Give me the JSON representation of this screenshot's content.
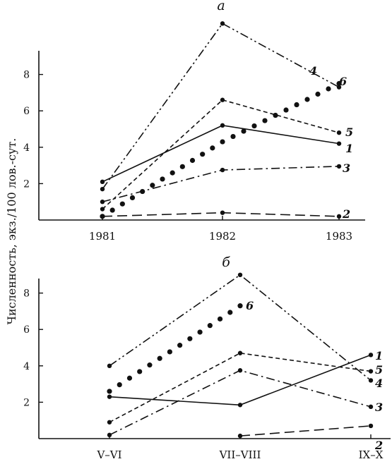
{
  "ylabel": "Численность, экз./100 лов.-сут.",
  "chart_data": [
    {
      "type": "line",
      "panel_label": "а",
      "x": [
        "1981",
        "1982",
        "1983"
      ],
      "ylim": [
        0,
        9.2
      ],
      "yticks": [
        2,
        4,
        6,
        8
      ],
      "series": [
        {
          "name": "1",
          "style": "solid",
          "values": [
            2.1,
            5.2,
            4.2
          ]
        },
        {
          "name": "2",
          "style": "longdash",
          "values": [
            0.2,
            0.4,
            0.2
          ]
        },
        {
          "name": "3",
          "style": "dashdot",
          "values": [
            1.0,
            2.75,
            2.95
          ]
        },
        {
          "name": "4",
          "style": "dashdotdot",
          "values": [
            1.7,
            10.8,
            7.3
          ]
        },
        {
          "name": "5",
          "style": "shortdash",
          "values": [
            0.6,
            6.6,
            4.8
          ]
        },
        {
          "name": "6",
          "style": "dots",
          "values": [
            0.2,
            4.3,
            7.5
          ]
        }
      ]
    },
    {
      "type": "line",
      "panel_label": "б",
      "x": [
        "V–VI",
        "VII–VIII",
        "IX–X"
      ],
      "ylim": [
        0,
        9.2
      ],
      "yticks": [
        2,
        4,
        6,
        8
      ],
      "series": [
        {
          "name": "1",
          "style": "solid",
          "values": [
            2.3,
            1.85,
            4.6
          ]
        },
        {
          "name": "2",
          "style": "longdash",
          "values": [
            null,
            0.15,
            0.7
          ]
        },
        {
          "name": "3",
          "style": "dashdot",
          "values": [
            0.2,
            3.75,
            1.75
          ]
        },
        {
          "name": "4",
          "style": "dashdotdot",
          "values": [
            4.0,
            9.0,
            3.2
          ]
        },
        {
          "name": "5",
          "style": "shortdash",
          "values": [
            0.9,
            4.7,
            3.7
          ]
        },
        {
          "name": "6",
          "style": "dots",
          "values": [
            2.6,
            7.3,
            null
          ]
        }
      ]
    }
  ]
}
